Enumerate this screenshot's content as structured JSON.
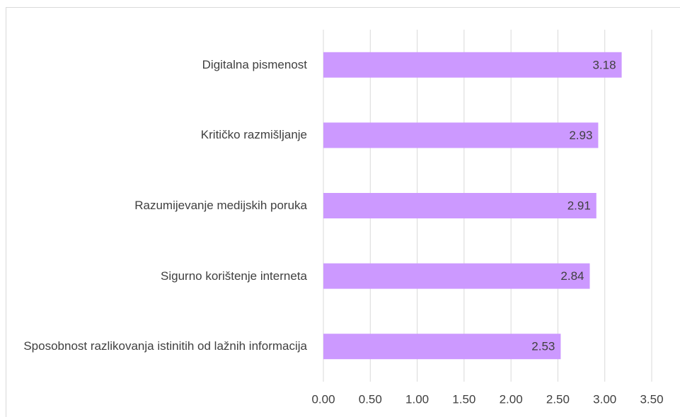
{
  "chart_data": {
    "type": "barh",
    "categories": [
      "Digitalna pismenost",
      "Kritičko razmišljanje",
      "Razumijevanje medijskih poruka",
      "Sigurno korištenje interneta",
      "Sposobnost razlikovanja istinitih od lažnih informacija"
    ],
    "values": [
      3.18,
      2.93,
      2.91,
      2.84,
      2.53
    ],
    "color": "#cc99ff",
    "xlim": [
      0,
      3.5
    ],
    "xticks": [
      {
        "value": 0,
        "label": "0.00"
      },
      {
        "value": 0.5,
        "label": "0.50"
      },
      {
        "value": 1,
        "label": "1.00"
      },
      {
        "value": 1.5,
        "label": "1.50"
      },
      {
        "value": 2,
        "label": "2.00"
      },
      {
        "value": 2.5,
        "label": "2.50"
      },
      {
        "value": 3,
        "label": "3.00"
      },
      {
        "value": 3.5,
        "label": "3.50"
      }
    ],
    "grid": true
  }
}
